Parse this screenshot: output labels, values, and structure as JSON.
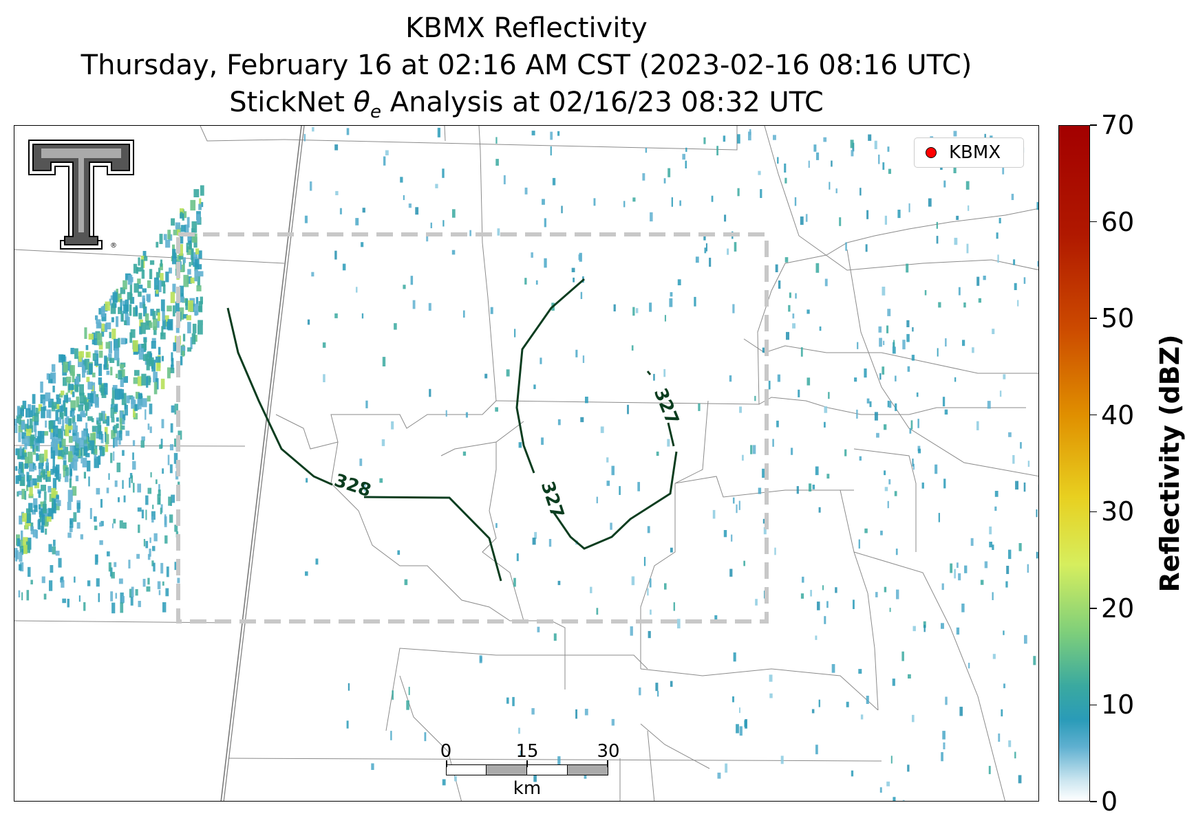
{
  "title": {
    "line1": "KBMX Reflectivity",
    "line2": "Thursday, February 16 at 02:16 AM CST (2023-02-16 08:16 UTC)",
    "line3_prefix": "StickNet ",
    "line3_symbol": "θ",
    "line3_subscript": "e",
    "line3_suffix": " Analysis at 02/16/23 08:32 UTC"
  },
  "legend": {
    "label": "KBMX",
    "marker_color": "#ff0000"
  },
  "colorbar": {
    "label": "Reflectivity (dBZ)",
    "ticks": [
      "0",
      "10",
      "20",
      "30",
      "40",
      "50",
      "60",
      "70"
    ],
    "range": [
      0,
      70
    ]
  },
  "contours": [
    {
      "value": "328",
      "color": "#0b3d1f"
    },
    {
      "value": "327",
      "color": "#0b3d1f"
    },
    {
      "value": "327",
      "color": "#0b3d1f"
    }
  ],
  "scale_bar": {
    "labels": [
      "0",
      "15",
      "30"
    ],
    "unit": "km"
  },
  "analysis_box_color": "#c8c8c8",
  "logo": {
    "name": "Texas Tech Double T"
  }
}
